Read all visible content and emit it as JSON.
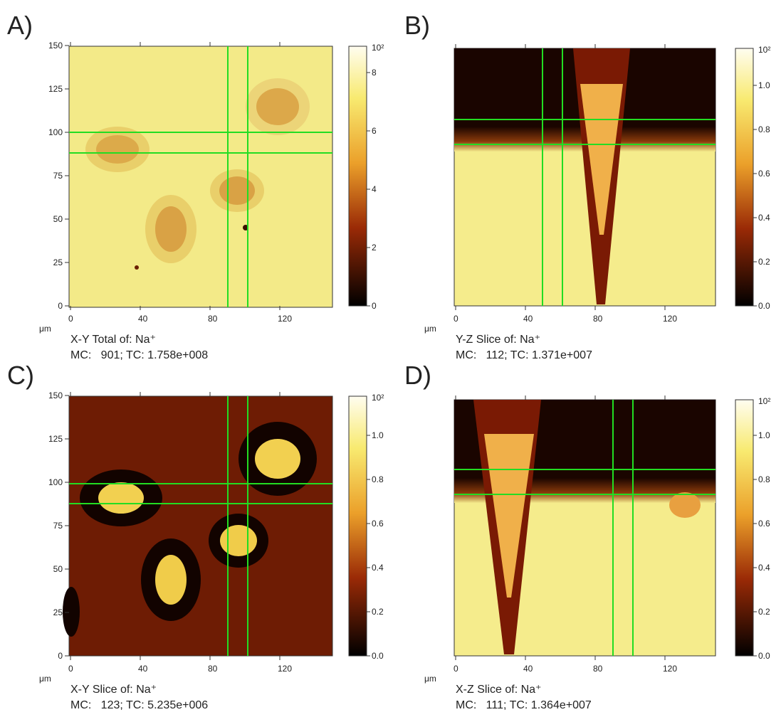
{
  "panels": [
    {
      "label": "A)",
      "x_ticks": [
        "0",
        "40",
        "80",
        "120"
      ],
      "y_ticks": [
        "0",
        "25",
        "50",
        "75",
        "100",
        "125",
        "150"
      ],
      "colorbar_ticks": [
        "0",
        "2",
        "4",
        "6",
        "8"
      ],
      "colorbar_exponent": "10²",
      "unit": "μm",
      "caption": "X-Y Total of: Na⁺",
      "stats": "MC:   901; TC: 1.758e+008"
    },
    {
      "label": "B)",
      "x_ticks": [
        "0",
        "40",
        "80",
        "120"
      ],
      "colorbar_ticks": [
        "0.0",
        "0.2",
        "0.4",
        "0.6",
        "0.8",
        "1.0"
      ],
      "colorbar_exponent": "10²",
      "unit": "μm",
      "caption": "Y-Z Slice of: Na⁺",
      "stats": "MC:   112; TC: 1.371e+007"
    },
    {
      "label": "C)",
      "x_ticks": [
        "0",
        "40",
        "80",
        "120"
      ],
      "y_ticks": [
        "0",
        "25",
        "50",
        "75",
        "100",
        "125",
        "150"
      ],
      "colorbar_ticks": [
        "0.0",
        "0.2",
        "0.4",
        "0.6",
        "0.8",
        "1.0"
      ],
      "colorbar_exponent": "10²",
      "unit": "μm",
      "caption": "X-Y Slice of: Na⁺",
      "stats": "MC:   123; TC: 5.235e+006"
    },
    {
      "label": "D)",
      "x_ticks": [
        "0",
        "40",
        "80",
        "120"
      ],
      "colorbar_ticks": [
        "0.0",
        "0.2",
        "0.4",
        "0.6",
        "0.8",
        "1.0"
      ],
      "colorbar_exponent": "10²",
      "unit": "μm",
      "caption": "X-Z Slice of: Na⁺",
      "stats": "MC:   111; TC: 1.364e+007"
    }
  ]
}
